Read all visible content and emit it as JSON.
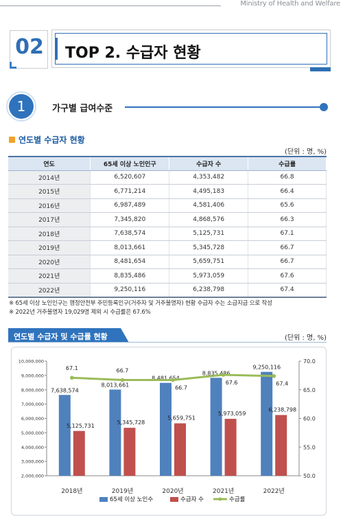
{
  "header": {
    "ministry": "Ministry of Health and Welfare"
  },
  "section": {
    "number": "02",
    "title": "TOP 2. 수급자 현황"
  },
  "subsection": {
    "number": "1",
    "title": "가구별 급여수준"
  },
  "table_block": {
    "title": "연도별 수급자 현황",
    "unit": "(단위 : 명, %)",
    "columns": [
      "연도",
      "65세 이상 노인인구",
      "수급자 수",
      "수급률"
    ],
    "rows": [
      [
        "2014년",
        "6,520,607",
        "4,353,482",
        "66.8"
      ],
      [
        "2015년",
        "6,771,214",
        "4,495,183",
        "66.4"
      ],
      [
        "2016년",
        "6,987,489",
        "4,581,406",
        "65.6"
      ],
      [
        "2017년",
        "7,345,820",
        "4,868,576",
        "66.3"
      ],
      [
        "2018년",
        "7,638,574",
        "5,125,731",
        "67.1"
      ],
      [
        "2019년",
        "8,013,661",
        "5,345,728",
        "66.7"
      ],
      [
        "2020년",
        "8,481,654",
        "5,659,751",
        "66.7"
      ],
      [
        "2021년",
        "8,835,486",
        "5,973,059",
        "67.6"
      ],
      [
        "2022년",
        "9,250,116",
        "6,238,798",
        "67.4"
      ]
    ],
    "notes": [
      "※ 65세 이상 노인인구는 행정안전부 주민등록인구(거주자 및 거주불명자) 현황 수급자 수는 소급지급 으로 작성",
      "※ 2022년 거주불명자 19,029명 제외 시 수급률은 67.6%"
    ]
  },
  "chart_block": {
    "title": "연도별 수급자 및 수급률 현황",
    "unit": "(단위 : 명, %)"
  },
  "colors": {
    "primary": "#2f73bd",
    "bar1": "#4f81bd",
    "bar2": "#c0504d",
    "line": "#9bbb59",
    "accent": "#f0a22b"
  },
  "chart_data": {
    "type": "bar",
    "categories": [
      "2018년",
      "2019년",
      "2020년",
      "2021년",
      "2022년"
    ],
    "series": [
      {
        "name": "65세 이상 노인수",
        "type": "bar",
        "axis": "left",
        "values": [
          7638574,
          8013661,
          8481654,
          8835486,
          9250116
        ],
        "labels": [
          "7,638,574",
          "8,013,661",
          "8,481,654",
          "8,835,486",
          "9,250,116"
        ]
      },
      {
        "name": "수급자 수",
        "type": "bar",
        "axis": "left",
        "values": [
          5125731,
          5345728,
          5659751,
          5973059,
          6238798
        ],
        "labels": [
          "5,125,731",
          "5,345,728",
          "5,659,751",
          "5,973,059",
          "6,238,798"
        ]
      },
      {
        "name": "수급률",
        "type": "line",
        "axis": "right",
        "values": [
          67.1,
          66.7,
          66.7,
          67.6,
          67.4
        ],
        "labels": [
          "67.1",
          "66.7",
          "66.7",
          "67.6",
          "67.4"
        ]
      }
    ],
    "ylim_left": [
      2000000,
      10000000
    ],
    "yticks_left": [
      "2,000,000",
      "3,000,000",
      "4,000,000",
      "5,000,000",
      "6,000,000",
      "7,000,000",
      "8,000,000",
      "9,000,000",
      "10,000,000"
    ],
    "ylim_right": [
      50,
      70
    ],
    "yticks_right": [
      "50.0",
      "55.0",
      "60.0",
      "65.0",
      "70.0"
    ],
    "grid": false,
    "legend": "bottom"
  }
}
